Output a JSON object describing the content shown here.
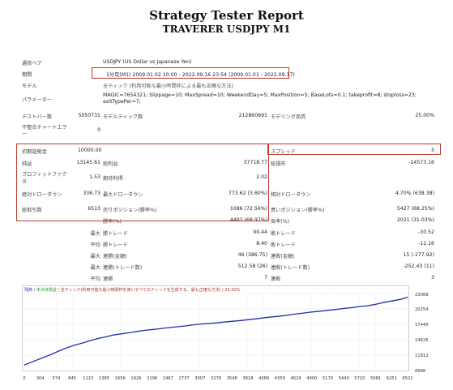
{
  "title": "Strategy Tester Report",
  "subtitle": "TRAVERER USDJPY M1",
  "info": {
    "symbol_label": "通貨ペア",
    "symbol_value": "USDJPY (US Dollar vs Japanese Yen)",
    "period_label": "期間",
    "period_value": "1分足(M1) 2009.01.02 10:00 - 2022.09.16 23:54 (2009.01.01 - 2022.09.17)",
    "model_label": "モデル",
    "model_value": "全ティック (利用可能な最小時間枠による最も正確な方法)",
    "params_label": "パラメーター",
    "params_value_line1": "MAGIC=7654321; Slippage=10; MaxSpread=10; WeekendDay=5; MaxPosition=5; BaseLots=0.1; takeprofit=8; stoploss=23;",
    "params_value_line2": "exitTypePer=7;"
  },
  "bars": {
    "label": "テストバー数",
    "value": "5050731"
  },
  "ticks": {
    "label": "モデルティック数",
    "value": "212860691"
  },
  "quality": {
    "label": "モデリング品質",
    "value": "25.00%"
  },
  "mismatch": {
    "label_line1": "不整合チャートエラ",
    "label_line2": "ー",
    "value": "0"
  },
  "deposit": {
    "label": "初期証拠金",
    "value": "10000.00"
  },
  "spread": {
    "label": "スプレッド",
    "value": "5"
  },
  "net_profit": {
    "label": "純益",
    "value": "13145.61"
  },
  "gross_profit": {
    "label": "総利益",
    "value": "37718.77"
  },
  "gross_loss": {
    "label": "総損失",
    "value": "-24573.16"
  },
  "profit_factor": {
    "label_line1": "プロフィットファク",
    "label_line2": "タ",
    "value": "1.53"
  },
  "expected_payoff": {
    "label": "期待利得",
    "value": "2.02"
  },
  "abs_dd": {
    "label": "絶対ドローダウン",
    "value": "336.73"
  },
  "max_dd": {
    "label": "最大ドローダウン",
    "value": "773.62 (3.60%)"
  },
  "rel_dd": {
    "label": "相対ドローダウン",
    "value": "4.70% (638.38)"
  },
  "total_trades": {
    "label": "総取引数",
    "value": "6513"
  },
  "short_pos": {
    "label": "売りポジション(勝率%)",
    "value": "1086 (72.56%)"
  },
  "long_pos": {
    "label": "買いポジション(勝率%)",
    "value": "5427 (68.25%)"
  },
  "win_rate": {
    "label": "勝率(%)",
    "value": "4492 (68.97%)"
  },
  "loss_rate": {
    "label": "負率(%)",
    "value": "2021 (31.03%)"
  },
  "max_label": "最大",
  "avg_label": "平均",
  "largest_win": {
    "label": "勝トレード",
    "value": "90.44"
  },
  "largest_loss": {
    "label": "敗トレード",
    "value": "-30.52"
  },
  "avg_win": {
    "label": "勝トレード",
    "value": "8.40"
  },
  "avg_loss": {
    "label": "敗トレード",
    "value": "-12.16"
  },
  "max_consec_wins": {
    "label": "連勝(金額)",
    "value": "46 (386.75)"
  },
  "max_consec_losses": {
    "label": "連敗(金額)",
    "value": "15 (-177.92)"
  },
  "max_consec_profit": {
    "label": "連勝(トレード数)",
    "value": "512.58 (26)"
  },
  "max_consec_loss": {
    "label": "連敗(トレード数)",
    "value": "-252.43 (11)"
  },
  "avg_consec_wins": {
    "label": "連勝",
    "value": "7"
  },
  "avg_consec_losses": {
    "label": "連敗",
    "value": "3"
  },
  "chart_data": {
    "type": "line",
    "legend_prefix": "残高",
    "legend_sep": "/",
    "legend_mid": "未決済損益",
    "legend_text": "/ 全ティック(利用可能な最小時間枠を使いすべてのティックを生成する、最も正確な方法) / 25.00%",
    "colors": {
      "balance": "#1f2fa8",
      "legend_balance": "#1f2fa8",
      "legend_mid": "#2e9e3e",
      "legend_text": "#b03030"
    },
    "x_ticks": [
      "0",
      "304",
      "574",
      "845",
      "1115",
      "1385",
      "1656",
      "1926",
      "2196",
      "2467",
      "2737",
      "3007",
      "3278",
      "3548",
      "3818",
      "4089",
      "4359",
      "4629",
      "4900",
      "5170",
      "5440",
      "5710",
      "5981",
      "6251",
      "6521"
    ],
    "y_ticks": [
      "23068",
      "20254",
      "17440",
      "14626",
      "11812",
      "8998"
    ],
    "xlim": [
      0,
      6521
    ],
    "ylim": [
      8998,
      23068
    ],
    "x": [
      0,
      150,
      304,
      450,
      574,
      700,
      845,
      1000,
      1115,
      1250,
      1385,
      1500,
      1656,
      1800,
      1926,
      2050,
      2196,
      2350,
      2467,
      2600,
      2737,
      2880,
      3007,
      3150,
      3278,
      3400,
      3548,
      3700,
      3818,
      3950,
      4089,
      4220,
      4359,
      4500,
      4629,
      4750,
      4900,
      5050,
      5170,
      5300,
      5440,
      5580,
      5710,
      5850,
      5981,
      6100,
      6251,
      6400,
      6521
    ],
    "y": [
      10000,
      10650,
      11300,
      11900,
      12500,
      13050,
      13600,
      14050,
      14450,
      14850,
      15150,
      15450,
      15700,
      15950,
      16150,
      16350,
      16500,
      16700,
      16850,
      17000,
      17150,
      17350,
      17500,
      17600,
      17700,
      17850,
      18000,
      18150,
      18300,
      18450,
      18650,
      18800,
      18950,
      19150,
      19350,
      19500,
      19700,
      19850,
      20000,
      20150,
      20350,
      20500,
      20700,
      20850,
      21100,
      21400,
      21700,
      22000,
      22400
    ]
  }
}
